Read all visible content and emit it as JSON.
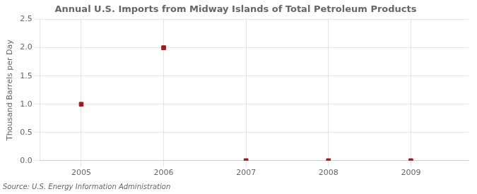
{
  "chart_data": {
    "type": "scatter",
    "title": "Annual U.S. Imports from Midway Islands of Total Petroleum Products",
    "y_label": "Thousand Barrels per Day",
    "annotations": [
      "Source: U.S. Energy Information Administration"
    ],
    "x": [
      2005,
      2006,
      2007,
      2008,
      2009
    ],
    "values": [
      1.0,
      2.0,
      0.0,
      0.0,
      0.0
    ],
    "color": "#9B1C1C",
    "marker": "square",
    "xlim": [
      2004.5,
      2009.7
    ],
    "ylim": [
      0.0,
      2.5
    ],
    "xticks": [
      2005,
      2006,
      2007,
      2008,
      2009
    ],
    "yticks": [
      {
        "value": 0.0,
        "label": "0.0"
      },
      {
        "value": 0.5,
        "label": "0.5"
      },
      {
        "value": 1.0,
        "label": "1.0"
      },
      {
        "value": 1.5,
        "label": "1.5"
      },
      {
        "value": 2.0,
        "label": "2.0"
      },
      {
        "value": 2.5,
        "label": "2.5"
      }
    ],
    "grid": true
  }
}
